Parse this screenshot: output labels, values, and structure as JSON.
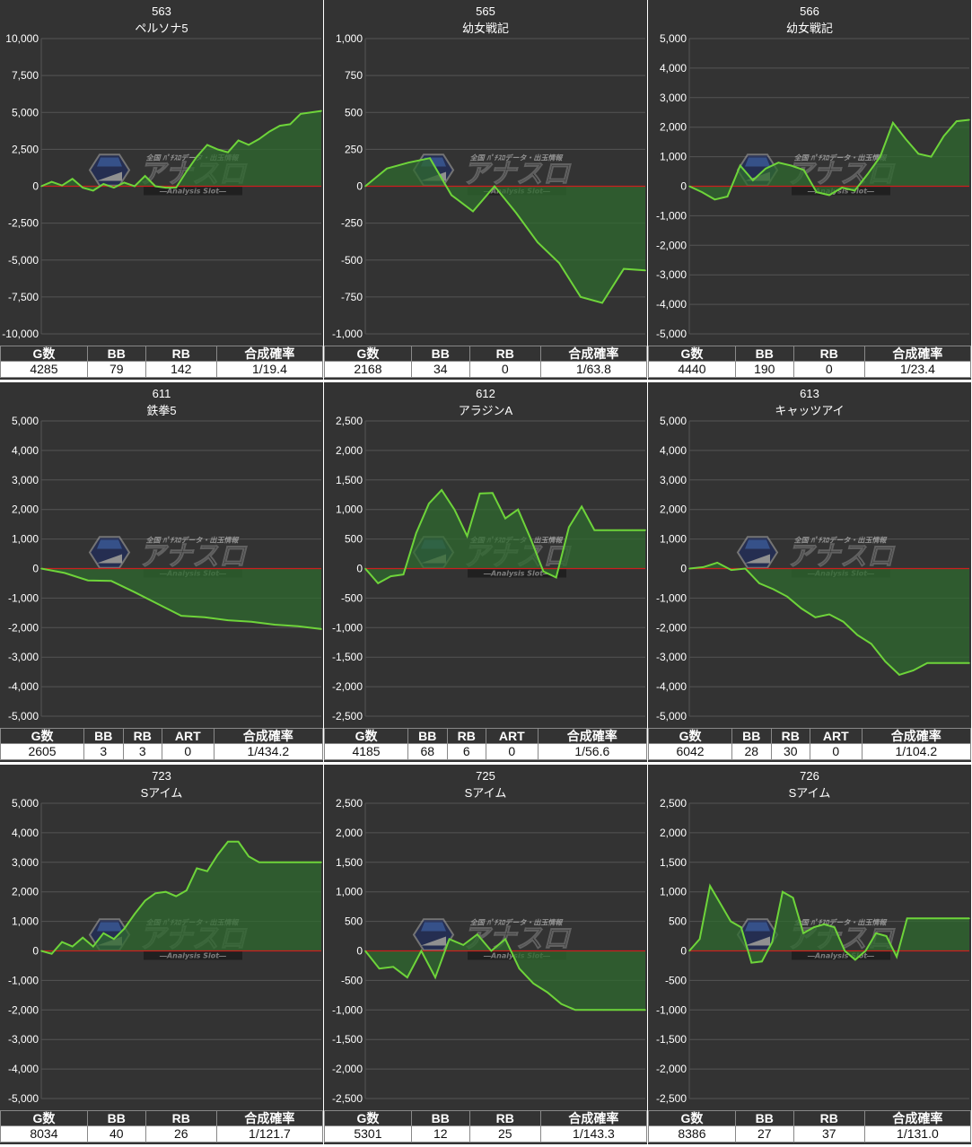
{
  "colors": {
    "panel_bg": "#333333",
    "grid": "#555555",
    "zero_line": "#cc1f1f",
    "series": "#6ed43a",
    "fill": "#2f6a2f"
  },
  "watermark": {
    "icon": "hexagon-logo-icon",
    "top_text": "全国 ﾊﾟﾁｽﾛデータ・出玉情報",
    "main_text": "アナスロ",
    "sub_text": "―Analysis Slot―"
  },
  "panels": [
    {
      "number": "563",
      "name": "ペルソナ5",
      "stats": {
        "headers": [
          "G数",
          "BB",
          "RB",
          "合成確率"
        ],
        "values": [
          "4285",
          "79",
          "142",
          "1/19.4"
        ]
      },
      "chart_data": {
        "type": "area",
        "ylim": [
          -10000,
          10000
        ],
        "yticks": [
          "10,000",
          "7,500",
          "5,000",
          "2,500",
          "0",
          "-2,500",
          "-5,000",
          "-7,500",
          "-10,000"
        ],
        "x": [
          0,
          1,
          2,
          3,
          4,
          5,
          6,
          7,
          8,
          9,
          10,
          11,
          12,
          13,
          14,
          15,
          16,
          17,
          18,
          19,
          20,
          21,
          22,
          23,
          24,
          25,
          26,
          27
        ],
        "values": [
          0,
          300,
          50,
          500,
          -100,
          -300,
          150,
          -100,
          250,
          0,
          700,
          0,
          -100,
          -100,
          1000,
          2000,
          2800,
          2500,
          2300,
          3100,
          2800,
          3200,
          3700,
          4100,
          4200,
          4900,
          5000,
          5100
        ]
      }
    },
    {
      "number": "565",
      "name": "幼女戦記",
      "stats": {
        "headers": [
          "G数",
          "BB",
          "RB",
          "合成確率"
        ],
        "values": [
          "2168",
          "34",
          "0",
          "1/63.8"
        ]
      },
      "chart_data": {
        "type": "area",
        "ylim": [
          -1000,
          1000
        ],
        "yticks": [
          "1,000",
          "750",
          "500",
          "250",
          "0",
          "-250",
          "-500",
          "-750",
          "-1,000"
        ],
        "x": [
          0,
          1,
          2,
          3,
          4,
          5,
          6,
          7,
          8,
          9,
          10,
          11,
          12,
          13
        ],
        "values": [
          0,
          120,
          160,
          190,
          -60,
          -170,
          0,
          -180,
          -380,
          -520,
          -750,
          -790,
          -560,
          -570
        ]
      }
    },
    {
      "number": "566",
      "name": "幼女戦記",
      "stats": {
        "headers": [
          "G数",
          "BB",
          "RB",
          "合成確率"
        ],
        "values": [
          "4440",
          "190",
          "0",
          "1/23.4"
        ]
      },
      "chart_data": {
        "type": "area",
        "ylim": [
          -5000,
          5000
        ],
        "yticks": [
          "5,000",
          "4,000",
          "3,000",
          "2,000",
          "1,000",
          "0",
          "-1,000",
          "-2,000",
          "-3,000",
          "-4,000",
          "-5,000"
        ],
        "x": [
          0,
          1,
          2,
          3,
          4,
          5,
          6,
          7,
          8,
          9,
          10,
          11,
          12,
          13,
          14,
          15,
          16,
          17,
          18,
          19,
          20,
          21,
          22
        ],
        "values": [
          0,
          -200,
          -450,
          -350,
          700,
          200,
          600,
          800,
          700,
          550,
          -200,
          -300,
          -50,
          -150,
          400,
          1000,
          2150,
          1600,
          1100,
          1000,
          1700,
          2200,
          2250
        ]
      }
    },
    {
      "number": "611",
      "name": "鉄拳5",
      "stats": {
        "headers": [
          "G数",
          "BB",
          "RB",
          "ART",
          "合成確率"
        ],
        "values": [
          "2605",
          "3",
          "3",
          "0",
          "1/434.2"
        ]
      },
      "chart_data": {
        "type": "area",
        "ylim": [
          -5000,
          5000
        ],
        "yticks": [
          "5,000",
          "4,000",
          "3,000",
          "2,000",
          "1,000",
          "0",
          "-1,000",
          "-2,000",
          "-3,000",
          "-4,000",
          "-5,000"
        ],
        "x": [
          0,
          1,
          2,
          3,
          4,
          5,
          6,
          7,
          8,
          9,
          10,
          11,
          12
        ],
        "values": [
          0,
          -150,
          -400,
          -420,
          -800,
          -1200,
          -1600,
          -1650,
          -1750,
          -1800,
          -1900,
          -1950,
          -2050
        ]
      }
    },
    {
      "number": "612",
      "name": "アラジンA",
      "stats": {
        "headers": [
          "G数",
          "BB",
          "RB",
          "ART",
          "合成確率"
        ],
        "values": [
          "4185",
          "68",
          "6",
          "0",
          "1/56.6"
        ]
      },
      "chart_data": {
        "type": "area",
        "ylim": [
          -2500,
          2500
        ],
        "yticks": [
          "2,500",
          "2,000",
          "1,500",
          "1,000",
          "500",
          "0",
          "-500",
          "-1,000",
          "-1,500",
          "-2,000",
          "-2,500"
        ],
        "x": [
          0,
          1,
          2,
          3,
          4,
          5,
          6,
          7,
          8,
          9,
          10,
          11,
          12,
          13,
          14,
          15,
          16,
          17,
          18,
          19,
          20,
          21,
          22
        ],
        "values": [
          0,
          -250,
          -130,
          -100,
          600,
          1100,
          1330,
          1000,
          550,
          1270,
          1280,
          850,
          1000,
          500,
          -50,
          -150,
          700,
          1050,
          650,
          650,
          650,
          650,
          650
        ]
      }
    },
    {
      "number": "613",
      "name": "キャッツアイ",
      "stats": {
        "headers": [
          "G数",
          "BB",
          "RB",
          "ART",
          "合成確率"
        ],
        "values": [
          "6042",
          "28",
          "30",
          "0",
          "1/104.2"
        ]
      },
      "chart_data": {
        "type": "area",
        "ylim": [
          -5000,
          5000
        ],
        "yticks": [
          "5,000",
          "4,000",
          "3,000",
          "2,000",
          "1,000",
          "0",
          "-1,000",
          "-2,000",
          "-3,000",
          "-4,000",
          "-5,000"
        ],
        "x": [
          0,
          1,
          2,
          3,
          4,
          5,
          6,
          7,
          8,
          9,
          10,
          11,
          12,
          13,
          14,
          15,
          16,
          17,
          18,
          19,
          20
        ],
        "values": [
          0,
          50,
          200,
          -50,
          0,
          -500,
          -700,
          -950,
          -1350,
          -1650,
          -1550,
          -1800,
          -2250,
          -2550,
          -3150,
          -3600,
          -3450,
          -3200,
          -3200,
          -3200,
          -3200
        ]
      }
    },
    {
      "number": "723",
      "name": "Sアイム",
      "stats": {
        "headers": [
          "G数",
          "BB",
          "RB",
          "合成確率"
        ],
        "values": [
          "8034",
          "40",
          "26",
          "1/121.7"
        ]
      },
      "chart_data": {
        "type": "area",
        "ylim": [
          -5000,
          5000
        ],
        "yticks": [
          "5,000",
          "4,000",
          "3,000",
          "2,000",
          "1,000",
          "0",
          "-1,000",
          "-2,000",
          "-3,000",
          "-4,000",
          "-5,000"
        ],
        "x": [
          0,
          1,
          2,
          3,
          4,
          5,
          6,
          7,
          8,
          9,
          10,
          11,
          12,
          13,
          14,
          15,
          16,
          17,
          18,
          19,
          20,
          21,
          22,
          23,
          24,
          25,
          26,
          27
        ],
        "values": [
          0,
          -100,
          300,
          150,
          450,
          150,
          600,
          400,
          750,
          1250,
          1700,
          1950,
          2000,
          1850,
          2050,
          2800,
          2700,
          3250,
          3700,
          3700,
          3200,
          3000,
          3000,
          3000,
          3000,
          3000,
          3000,
          3000
        ]
      }
    },
    {
      "number": "725",
      "name": "Sアイム",
      "stats": {
        "headers": [
          "G数",
          "BB",
          "RB",
          "合成確率"
        ],
        "values": [
          "5301",
          "12",
          "25",
          "1/143.3"
        ]
      },
      "chart_data": {
        "type": "area",
        "ylim": [
          -2500,
          2500
        ],
        "yticks": [
          "2,500",
          "2,000",
          "1,500",
          "1,000",
          "500",
          "0",
          "-500",
          "-1,000",
          "-1,500",
          "-2,000",
          "-2,500"
        ],
        "x": [
          0,
          1,
          2,
          3,
          4,
          5,
          6,
          7,
          8,
          9,
          10,
          11,
          12,
          13,
          14,
          15,
          16,
          17,
          18,
          19,
          20
        ],
        "values": [
          0,
          -300,
          -270,
          -450,
          0,
          -450,
          200,
          100,
          280,
          0,
          200,
          -300,
          -550,
          -700,
          -900,
          -1000,
          -1000,
          -1000,
          -1000,
          -1000,
          -1000
        ]
      }
    },
    {
      "number": "726",
      "name": "Sアイム",
      "stats": {
        "headers": [
          "G数",
          "BB",
          "RB",
          "合成確率"
        ],
        "values": [
          "8386",
          "27",
          "37",
          "1/131.0"
        ]
      },
      "chart_data": {
        "type": "area",
        "ylim": [
          -2500,
          2500
        ],
        "yticks": [
          "2,500",
          "2,000",
          "1,500",
          "1,000",
          "500",
          "0",
          "-500",
          "-1,000",
          "-1,500",
          "-2,000",
          "-2,500"
        ],
        "x": [
          0,
          1,
          2,
          3,
          4,
          5,
          6,
          7,
          8,
          9,
          10,
          11,
          12,
          13,
          14,
          15,
          16,
          17,
          18,
          19,
          20,
          21,
          22,
          23,
          24,
          25,
          26,
          27
        ],
        "values": [
          0,
          200,
          1100,
          800,
          500,
          400,
          -200,
          -180,
          150,
          1000,
          900,
          300,
          400,
          450,
          400,
          0,
          -150,
          0,
          300,
          250,
          -100,
          550,
          550,
          550,
          550,
          550,
          550,
          550
        ]
      }
    }
  ]
}
